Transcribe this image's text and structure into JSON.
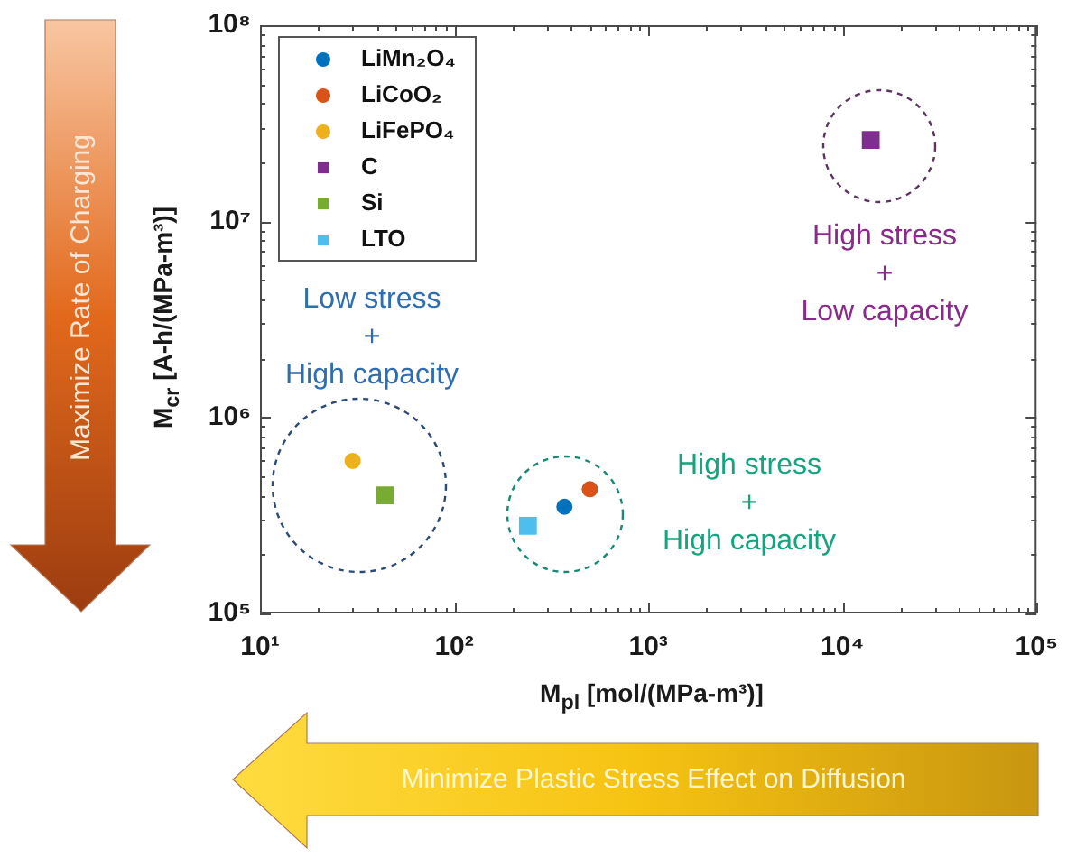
{
  "chart_data": {
    "type": "scatter",
    "xlabel": "M$_{pl}$ [mol/(MPa-m³)]",
    "ylabel": "M$_{cr}$ [A-h/(MPa-m³)]",
    "series": [
      {
        "name": "LiMn₂O₄",
        "color": "#0072bd",
        "marker": "circle",
        "x": [
          370
        ],
        "values": [
          350000
        ]
      },
      {
        "name": "LiCoO₂",
        "color": "#d95319",
        "marker": "circle",
        "x": [
          500
        ],
        "values": [
          430000
        ]
      },
      {
        "name": "LiFePO₄",
        "color": "#edb120",
        "marker": "circle",
        "x": [
          30
        ],
        "values": [
          600000
        ]
      },
      {
        "name": "C",
        "color": "#7e2f8e",
        "marker": "square",
        "x": [
          14000
        ],
        "values": [
          26000000
        ]
      },
      {
        "name": "Si",
        "color": "#77ac30",
        "marker": "square",
        "x": [
          44
        ],
        "values": [
          400000
        ]
      },
      {
        "name": "LTO",
        "color": "#4dbeee",
        "marker": "square",
        "x": [
          240
        ],
        "values": [
          280000
        ]
      }
    ],
    "xlim": [
      10,
      100000
    ],
    "ylim": [
      100000,
      100000000
    ],
    "xticks": [
      {
        "value": 10,
        "label": "10¹"
      },
      {
        "value": 100,
        "label": "10²"
      },
      {
        "value": 1000,
        "label": "10³"
      },
      {
        "value": 10000,
        "label": "10⁴"
      },
      {
        "value": 100000,
        "label": "10⁵"
      }
    ],
    "yticks": [
      {
        "value": 100000,
        "label": "10⁵"
      },
      {
        "value": 1000000,
        "label": "10⁶"
      },
      {
        "value": 10000000,
        "label": "10⁷"
      },
      {
        "value": 100000000,
        "label": "10⁸"
      }
    ],
    "log": "xy",
    "legend": "top left",
    "annotations": [
      "Low stress\n+\nHigh capacity",
      "High stress\n+\nHigh capacity",
      "High stress\n+\nLow capacity",
      "Maximize Rate of Charging",
      "Minimize Plastic Stress Effect on Diffusion"
    ]
  }
}
